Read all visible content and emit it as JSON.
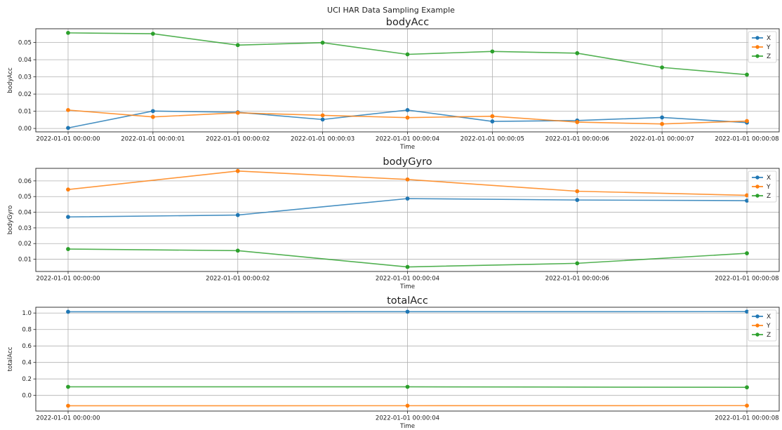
{
  "figure": {
    "suptitle": "UCI HAR Data Sampling Example"
  },
  "colors": {
    "X": "#1f77b4",
    "Y": "#ff7f0e",
    "Z": "#2ca02c"
  },
  "chart_data": [
    {
      "type": "line",
      "title": "bodyAcc",
      "xlabel": "Time",
      "ylabel": "bodyAcc",
      "x": [
        "2022-01-01 00:00:00",
        "2022-01-01 00:00:01",
        "2022-01-01 00:00:02",
        "2022-01-01 00:00:03",
        "2022-01-01 00:00:04",
        "2022-01-01 00:00:05",
        "2022-01-01 00:00:06",
        "2022-01-01 00:00:07",
        "2022-01-01 00:00:08"
      ],
      "xticks": [
        "2022-01-01 00:00:00",
        "2022-01-01 00:00:01",
        "2022-01-01 00:00:02",
        "2022-01-01 00:00:03",
        "2022-01-01 00:00:04",
        "2022-01-01 00:00:05",
        "2022-01-01 00:00:06",
        "2022-01-01 00:00:07",
        "2022-01-01 00:00:08"
      ],
      "yticks": [
        0.0,
        0.01,
        0.02,
        0.03,
        0.04,
        0.05
      ],
      "yticklabels": [
        "0.00",
        "0.01",
        "0.02",
        "0.03",
        "0.04",
        "0.05"
      ],
      "ylim": [
        -0.002,
        0.058
      ],
      "grid": true,
      "legend": "top-right",
      "series": [
        {
          "name": "X",
          "values": [
            0.0003,
            0.0101,
            0.0094,
            0.0052,
            0.0107,
            0.0041,
            0.0046,
            0.0064,
            0.0034
          ]
        },
        {
          "name": "Y",
          "values": [
            0.0107,
            0.0067,
            0.0091,
            0.0076,
            0.0063,
            0.0071,
            0.0037,
            0.0026,
            0.0043
          ]
        },
        {
          "name": "Z",
          "values": [
            0.0556,
            0.0551,
            0.0485,
            0.0499,
            0.0431,
            0.0448,
            0.0438,
            0.0355,
            0.0313
          ]
        }
      ]
    },
    {
      "type": "line",
      "title": "bodyGyro",
      "xlabel": "Time",
      "ylabel": "bodyGyro",
      "x": [
        "2022-01-01 00:00:00",
        "2022-01-01 00:00:02",
        "2022-01-01 00:00:04",
        "2022-01-01 00:00:06",
        "2022-01-01 00:00:08"
      ],
      "xticks": [
        "2022-01-01 00:00:00",
        "2022-01-01 00:00:02",
        "2022-01-01 00:00:04",
        "2022-01-01 00:00:06",
        "2022-01-01 00:00:08"
      ],
      "yticks": [
        0.01,
        0.02,
        0.03,
        0.04,
        0.05,
        0.06
      ],
      "yticklabels": [
        "0.01",
        "0.02",
        "0.03",
        "0.04",
        "0.05",
        "0.06"
      ],
      "ylim": [
        0.0022,
        0.068
      ],
      "grid": true,
      "legend": "top-right",
      "series": [
        {
          "name": "X",
          "values": [
            0.037,
            0.0382,
            0.0487,
            0.0478,
            0.0474
          ]
        },
        {
          "name": "Y",
          "values": [
            0.0545,
            0.0663,
            0.0609,
            0.0534,
            0.0508
          ]
        },
        {
          "name": "Z",
          "values": [
            0.0165,
            0.0155,
            0.0051,
            0.0074,
            0.0138
          ]
        }
      ]
    },
    {
      "type": "line",
      "title": "totalAcc",
      "xlabel": "Time",
      "ylabel": "totalAcc",
      "x": [
        "2022-01-01 00:00:00",
        "2022-01-01 00:00:04",
        "2022-01-01 00:00:08"
      ],
      "xticks": [
        "2022-01-01 00:00:00",
        "2022-01-01 00:00:04",
        "2022-01-01 00:00:08"
      ],
      "yticks": [
        0.0,
        0.2,
        0.4,
        0.6,
        0.8,
        1.0
      ],
      "yticklabels": [
        "0.0",
        "0.2",
        "0.4",
        "0.6",
        "0.8",
        "1.0"
      ],
      "ylim": [
        -0.19,
        1.07
      ],
      "grid": true,
      "legend": "top-right",
      "series": [
        {
          "name": "X",
          "values": [
            1.015,
            1.016,
            1.017
          ]
        },
        {
          "name": "Y",
          "values": [
            -0.126,
            -0.125,
            -0.124
          ]
        },
        {
          "name": "Z",
          "values": [
            0.104,
            0.104,
            0.098
          ]
        }
      ]
    }
  ]
}
